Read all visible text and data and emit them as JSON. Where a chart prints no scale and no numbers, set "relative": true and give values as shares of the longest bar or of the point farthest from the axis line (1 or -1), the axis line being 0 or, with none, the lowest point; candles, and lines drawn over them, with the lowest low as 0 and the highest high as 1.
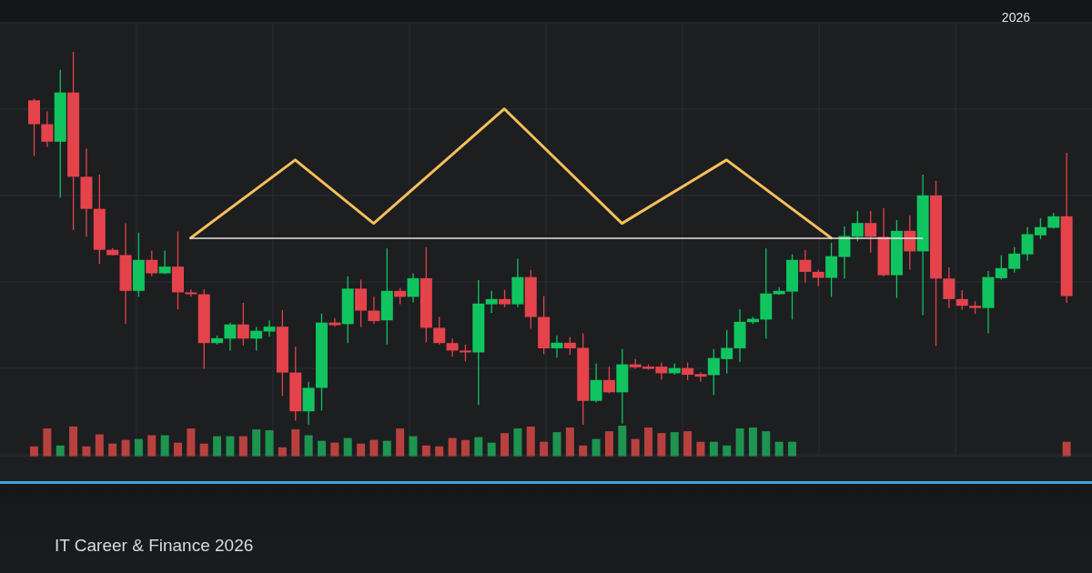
{
  "chart_data": [
    {
      "type": "candlestick",
      "relative": true,
      "grid": true,
      "subtitle": "IT Career & Finance 2026",
      "annotations": [
        "2026"
      ],
      "categories": [
        null,
        null,
        null,
        null,
        null,
        null,
        null,
        null,
        null,
        null,
        null,
        null,
        null,
        null,
        null,
        null,
        null,
        null,
        null,
        null,
        null,
        null,
        null,
        null,
        null,
        null,
        null,
        null,
        null,
        null,
        null,
        null,
        null,
        null,
        null,
        null,
        null,
        null,
        null,
        null,
        null,
        null,
        null,
        null,
        null,
        null,
        null,
        null,
        null,
        null,
        null,
        null,
        null,
        null,
        null,
        null,
        null,
        null,
        null,
        null,
        null,
        null,
        null,
        null,
        null,
        null,
        null,
        null,
        null,
        null,
        null,
        null,
        null,
        null,
        null,
        null,
        null,
        null,
        null,
        null
      ],
      "ohlc": [
        [
          0.87,
          0.874,
          0.721,
          0.806
        ],
        [
          0.806,
          0.84,
          0.745,
          0.759
        ],
        [
          0.759,
          0.952,
          0.609,
          0.891
        ],
        [
          0.891,
          1,
          0.522,
          0.665
        ],
        [
          0.665,
          0.741,
          0.504,
          0.579
        ],
        [
          0.579,
          0.671,
          0.431,
          0.469
        ],
        [
          0.469,
          0.473,
          0.454,
          0.455
        ],
        [
          0.455,
          0.54,
          0.27,
          0.359
        ],
        [
          0.359,
          0.515,
          0.343,
          0.442
        ],
        [
          0.442,
          0.467,
          0.398,
          0.406
        ],
        [
          0.406,
          0.467,
          0.404,
          0.424
        ],
        [
          0.424,
          0.518,
          0.309,
          0.355
        ],
        [
          0.355,
          0.363,
          0.343,
          0.35
        ],
        [
          0.35,
          0.363,
          0.15,
          0.219
        ],
        [
          0.219,
          0.239,
          0.215,
          0.232
        ],
        [
          0.231,
          0.274,
          0.199,
          0.269
        ],
        [
          0.269,
          0.327,
          0.213,
          0.231
        ],
        [
          0.231,
          0.262,
          0.199,
          0.252
        ],
        [
          0.25,
          0.28,
          0.236,
          0.263
        ],
        [
          0.263,
          0.308,
          0.077,
          0.14
        ],
        [
          0.14,
          0.209,
          0.011,
          0.036
        ],
        [
          0.036,
          0.115,
          0,
          0.099
        ],
        [
          0.099,
          0.298,
          0.038,
          0.274
        ],
        [
          0.274,
          0.286,
          0.263,
          0.267
        ],
        [
          0.27,
          0.398,
          0.219,
          0.365
        ],
        [
          0.365,
          0.389,
          0.262,
          0.306
        ],
        [
          0.306,
          0.343,
          0.27,
          0.278
        ],
        [
          0.28,
          0.473,
          0.215,
          0.359
        ],
        [
          0.359,
          0.367,
          0.323,
          0.343
        ],
        [
          0.343,
          0.406,
          0.328,
          0.393
        ],
        [
          0.393,
          0.476,
          0.221,
          0.26
        ],
        [
          0.26,
          0.289,
          0.215,
          0.219
        ],
        [
          0.219,
          0.231,
          0.183,
          0.199
        ],
        [
          0.199,
          0.215,
          0.17,
          0.194
        ],
        [
          0.194,
          0.388,
          0.053,
          0.325
        ],
        [
          0.323,
          0.359,
          0.3,
          0.337
        ],
        [
          0.337,
          0.362,
          0.315,
          0.323
        ],
        [
          0.323,
          0.445,
          0.315,
          0.396
        ],
        [
          0.396,
          0.415,
          0.258,
          0.289
        ],
        [
          0.289,
          0.345,
          0.189,
          0.205
        ],
        [
          0.205,
          0.239,
          0.18,
          0.22
        ],
        [
          0.22,
          0.235,
          0.187,
          0.205
        ],
        [
          0.206,
          0.245,
          0,
          0.064
        ],
        [
          0.064,
          0.164,
          0.06,
          0.12
        ],
        [
          0.12,
          0.156,
          0.084,
          0.087
        ],
        [
          0.087,
          0.203,
          0.003,
          0.162
        ],
        [
          0.162,
          0.176,
          0.15,
          0.154
        ],
        [
          0.156,
          0.162,
          0.148,
          0.15
        ],
        [
          0.156,
          0.167,
          0.121,
          0.138
        ],
        [
          0.138,
          0.164,
          0.134,
          0.152
        ],
        [
          0.152,
          0.167,
          0.12,
          0.134
        ],
        [
          0.136,
          0.14,
          0.115,
          0.129
        ],
        [
          0.133,
          0.203,
          0.079,
          0.179
        ],
        [
          0.176,
          0.254,
          0.138,
          0.206
        ],
        [
          0.205,
          0.31,
          0.168,
          0.276
        ],
        [
          0.275,
          0.289,
          0.27,
          0.284
        ],
        [
          0.282,
          0.473,
          0.231,
          0.352
        ],
        [
          0.35,
          0.369,
          0.348,
          0.359
        ],
        [
          0.357,
          0.457,
          0.282,
          0.442
        ],
        [
          0.442,
          0.468,
          0.382,
          0.41
        ],
        [
          0.41,
          0.416,
          0.372,
          0.394
        ],
        [
          0.394,
          0.488,
          0.343,
          0.452
        ],
        [
          0.45,
          0.532,
          0.392,
          0.506
        ],
        [
          0.504,
          0.573,
          0.492,
          0.541
        ],
        [
          0.541,
          0.573,
          0.462,
          0.504
        ],
        [
          0.504,
          0.581,
          0.398,
          0.401
        ],
        [
          0.401,
          0.549,
          0.34,
          0.52
        ],
        [
          0.52,
          0.561,
          0.416,
          0.465
        ],
        [
          0.465,
          0.671,
          0.294,
          0.615
        ],
        [
          0.615,
          0.654,
          0.211,
          0.392
        ],
        [
          0.392,
          0.422,
          0.313,
          0.337
        ],
        [
          0.337,
          0.361,
          0.308,
          0.319
        ],
        [
          0.319,
          0.331,
          0.297,
          0.313
        ],
        [
          0.313,
          0.412,
          0.245,
          0.396
        ],
        [
          0.393,
          0.454,
          0.389,
          0.42
        ],
        [
          0.418,
          0.476,
          0.408,
          0.459
        ],
        [
          0.457,
          0.53,
          0.44,
          0.511
        ],
        [
          0.508,
          0.554,
          0.498,
          0.53
        ],
        [
          0.528,
          0.568,
          0.526,
          0.559
        ],
        [
          0.559,
          0.729,
          0.327,
          0.345
        ]
      ],
      "colors": [
        "#e5434b",
        "#e5434b",
        "#10c45f",
        "#e5434b",
        "#e5434b",
        "#e5434b",
        "#e5434b",
        "#e5434b",
        "#10c45f",
        "#e5434b",
        "#10c45f",
        "#e5434b",
        "#e5434b",
        "#e5434b",
        "#10c45f",
        "#10c45f",
        "#e5434b",
        "#10c45f",
        "#10c45f",
        "#e5434b",
        "#e5434b",
        "#10c45f",
        "#10c45f",
        "#e5434b",
        "#10c45f",
        "#e5434b",
        "#e5434b",
        "#10c45f",
        "#e5434b",
        "#10c45f",
        "#e5434b",
        "#e5434b",
        "#e5434b",
        "#e5434b",
        "#10c45f",
        "#10c45f",
        "#e5434b",
        "#10c45f",
        "#e5434b",
        "#e5434b",
        "#10c45f",
        "#e5434b",
        "#e5434b",
        "#10c45f",
        "#e5434b",
        "#10c45f",
        "#e5434b",
        "#e5434b",
        "#e5434b",
        "#10c45f",
        "#e5434b",
        "#e5434b",
        "#10c45f",
        "#10c45f",
        "#10c45f",
        "#10c45f",
        "#10c45f",
        "#10c45f",
        "#10c45f",
        "#e5434b",
        "#e5434b",
        "#10c45f",
        "#10c45f",
        "#10c45f",
        "#e5434b",
        "#e5434b",
        "#10c45f",
        "#e5434b",
        "#10c45f",
        "#e5434b",
        "#e5434b",
        "#e5434b",
        "#e5434b",
        "#10c45f",
        "#10c45f",
        "#10c45f",
        "#10c45f",
        "#10c45f",
        "#10c45f",
        "#e5434b"
      ],
      "series": [
        {
          "type": "line",
          "color": "#f7c05a",
          "values": [
            null,
            null,
            null,
            null,
            null,
            null,
            null,
            null,
            null,
            null,
            null,
            null,
            0.501,
            null,
            null,
            null,
            null,
            null,
            null,
            null,
            0.71,
            null,
            null,
            null,
            null,
            null,
            0.54,
            null,
            null,
            null,
            null,
            null,
            null,
            null,
            null,
            null,
            0.847,
            null,
            null,
            null,
            null,
            null,
            null,
            null,
            null,
            0.54,
            null,
            null,
            null,
            null,
            null,
            null,
            null,
            0.71,
            null,
            null,
            null,
            null,
            null,
            null,
            null,
            0.501,
            null,
            null,
            null,
            null,
            null,
            null,
            null,
            null,
            null,
            null,
            null,
            null,
            null,
            null,
            null,
            null,
            null,
            null
          ]
        },
        {
          "type": "line",
          "color": "#e8e4da",
          "values": [
            null,
            null,
            null,
            null,
            null,
            null,
            null,
            null,
            null,
            null,
            null,
            null,
            0.5,
            null,
            null,
            null,
            null,
            null,
            null,
            null,
            null,
            null,
            null,
            null,
            null,
            null,
            null,
            null,
            null,
            null,
            null,
            null,
            null,
            null,
            null,
            null,
            null,
            null,
            null,
            null,
            null,
            null,
            null,
            null,
            null,
            null,
            null,
            null,
            null,
            null,
            null,
            null,
            null,
            null,
            null,
            null,
            null,
            null,
            null,
            null,
            null,
            null,
            null,
            null,
            null,
            null,
            null,
            null,
            0.5,
            null,
            null,
            null,
            null,
            null,
            null,
            null,
            null,
            null,
            null,
            null
          ]
        }
      ]
    },
    {
      "type": "bar",
      "relative": true,
      "categories": [
        null,
        null,
        null,
        null,
        null,
        null,
        null,
        null,
        null,
        null,
        null,
        null,
        null,
        null,
        null,
        null,
        null,
        null,
        null,
        null,
        null,
        null,
        null,
        null,
        null,
        null,
        null,
        null,
        null,
        null,
        null,
        null,
        null,
        null,
        null,
        null,
        null,
        null,
        null,
        null,
        null,
        null,
        null,
        null,
        null,
        null,
        null,
        null,
        null,
        null,
        null,
        null,
        null,
        null,
        null,
        null,
        null,
        null,
        null,
        null,
        null,
        null,
        null,
        null,
        null,
        null,
        null,
        null,
        null,
        null,
        null,
        null,
        null,
        null,
        null,
        null,
        null,
        null,
        null,
        null
      ],
      "values": [
        0.33,
        0.91,
        0.36,
        0.97,
        0.33,
        0.72,
        0.42,
        0.54,
        0.57,
        0.69,
        0.69,
        0.45,
        0.91,
        0.42,
        0.66,
        0.66,
        0.66,
        0.88,
        0.85,
        0.3,
        0.88,
        0.69,
        0.51,
        0.45,
        0.6,
        0.42,
        0.54,
        0.51,
        0.91,
        0.66,
        0.36,
        0.33,
        0.6,
        0.54,
        0.63,
        0.45,
        0.76,
        0.91,
        0.97,
        0.48,
        0.79,
        0.94,
        0.36,
        0.57,
        0.82,
        1,
        0.57,
        0.94,
        0.76,
        0.79,
        0.82,
        0.48,
        0.48,
        0.36,
        0.91,
        0.94,
        0.82,
        0.48,
        0.48,
        null,
        null,
        null,
        null,
        null,
        null,
        null,
        null,
        null,
        null,
        null,
        null,
        null,
        null,
        null,
        null,
        null,
        null,
        null,
        null,
        0.48
      ],
      "colors": [
        "#b8413f",
        "#b8413f",
        "#1d9450",
        "#b8413f",
        "#b8413f",
        "#b8413f",
        "#b8413f",
        "#b8413f",
        "#1d9450",
        "#b8413f",
        "#1d9450",
        "#b8413f",
        "#b8413f",
        "#b8413f",
        "#1d9450",
        "#1d9450",
        "#b8413f",
        "#1d9450",
        "#1d9450",
        "#b8413f",
        "#b8413f",
        "#1d9450",
        "#1d9450",
        "#b8413f",
        "#1d9450",
        "#b8413f",
        "#b8413f",
        "#1d9450",
        "#b8413f",
        "#1d9450",
        "#b8413f",
        "#b8413f",
        "#b8413f",
        "#b8413f",
        "#1d9450",
        "#1d9450",
        "#b8413f",
        "#1d9450",
        "#b8413f",
        "#b8413f",
        "#1d9450",
        "#b8413f",
        "#b8413f",
        "#1d9450",
        "#b8413f",
        "#1d9450",
        "#b8413f",
        "#b8413f",
        "#b8413f",
        "#1d9450",
        "#b8413f",
        "#b8413f",
        "#1d9450",
        "#1d9450",
        "#1d9450",
        "#1d9450",
        "#1d9450",
        "#1d9450",
        "#1d9450",
        null,
        null,
        null,
        null,
        null,
        null,
        null,
        null,
        null,
        null,
        null,
        null,
        null,
        null,
        null,
        null,
        null,
        null,
        null,
        null,
        "#b8413f"
      ]
    }
  ]
}
